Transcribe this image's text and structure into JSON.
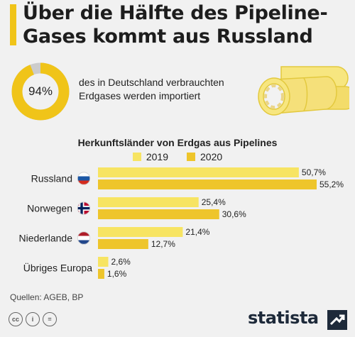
{
  "header": {
    "title_line1": "Über die Hälfte des Pipeline-",
    "title_line2": "Gases kommt aus Russland"
  },
  "import_stat": {
    "percent_label": "94%",
    "percent_value": 94,
    "text_line1": "des in Deutschland verbrauchten",
    "text_line2": "Erdgases werden importiert"
  },
  "colors": {
    "accent": "#f0c419",
    "y2019": "#f7e462",
    "y2020": "#eec52b",
    "donut_rest": "#cccccc"
  },
  "chart_data": {
    "type": "bar",
    "orientation": "horizontal",
    "title": "Herkunftsländer von Erdgas aus Pipelines",
    "categories": [
      "Russland",
      "Norwegen",
      "Niederlande",
      "Übriges Europa"
    ],
    "flags": [
      "russia-flag-icon",
      "norway-flag-icon",
      "netherlands-flag-icon",
      ""
    ],
    "series": [
      {
        "name": "2019",
        "values": [
          50.7,
          25.4,
          21.4,
          2.6
        ],
        "labels": [
          "50,7%",
          "25,4%",
          "21,4%",
          "2,6%"
        ]
      },
      {
        "name": "2020",
        "values": [
          55.2,
          30.6,
          12.7,
          1.6
        ],
        "labels": [
          "55,2%",
          "30,6%",
          "12,7%",
          "1,6%"
        ]
      }
    ],
    "xlim": [
      0,
      55.2
    ],
    "legend_position": "top-center",
    "grid": false
  },
  "footer": {
    "source": "Quellen: AGEB, BP",
    "license_icons": [
      "cc-icon",
      "by-icon",
      "nd-icon"
    ],
    "brand": "statista"
  }
}
